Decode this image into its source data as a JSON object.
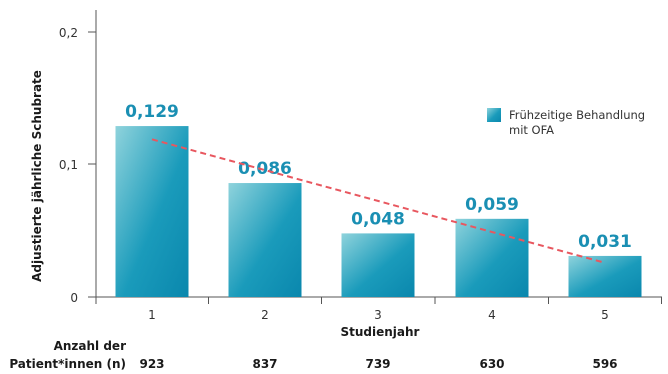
{
  "chart_data": {
    "type": "bar",
    "categories": [
      "1",
      "2",
      "3",
      "4",
      "5"
    ],
    "values": [
      0.129,
      0.086,
      0.048,
      0.059,
      0.031
    ],
    "data_labels": [
      "0,129",
      "0,086",
      "0,048",
      "0,059",
      "0,031"
    ],
    "xlabel": "Studienjahr",
    "ylabel": "Adjustierte jährliche Schubrate",
    "ylim": [
      0,
      0.2
    ],
    "yticks": [
      0,
      0.1,
      0.2
    ],
    "ytick_labels": [
      "0",
      "0,1",
      "0,2"
    ],
    "legend": {
      "line1": "Frühzeitige Behandlung",
      "line2": "mit OFA",
      "placement": "top-right"
    },
    "trendline": {
      "style": "dashed",
      "color": "#e8575f",
      "from": [
        1,
        0.119
      ],
      "to": [
        5,
        0.026
      ]
    },
    "grid": false,
    "bar_color_light": "#8fd3dc",
    "bar_color_dark": "#0a87ad",
    "label_color": "#1a8fb3",
    "patients": {
      "label_line1": "Anzahl der",
      "label_line2": "Patient*innen (n)",
      "values": [
        "923",
        "837",
        "739",
        "630",
        "596"
      ]
    }
  }
}
